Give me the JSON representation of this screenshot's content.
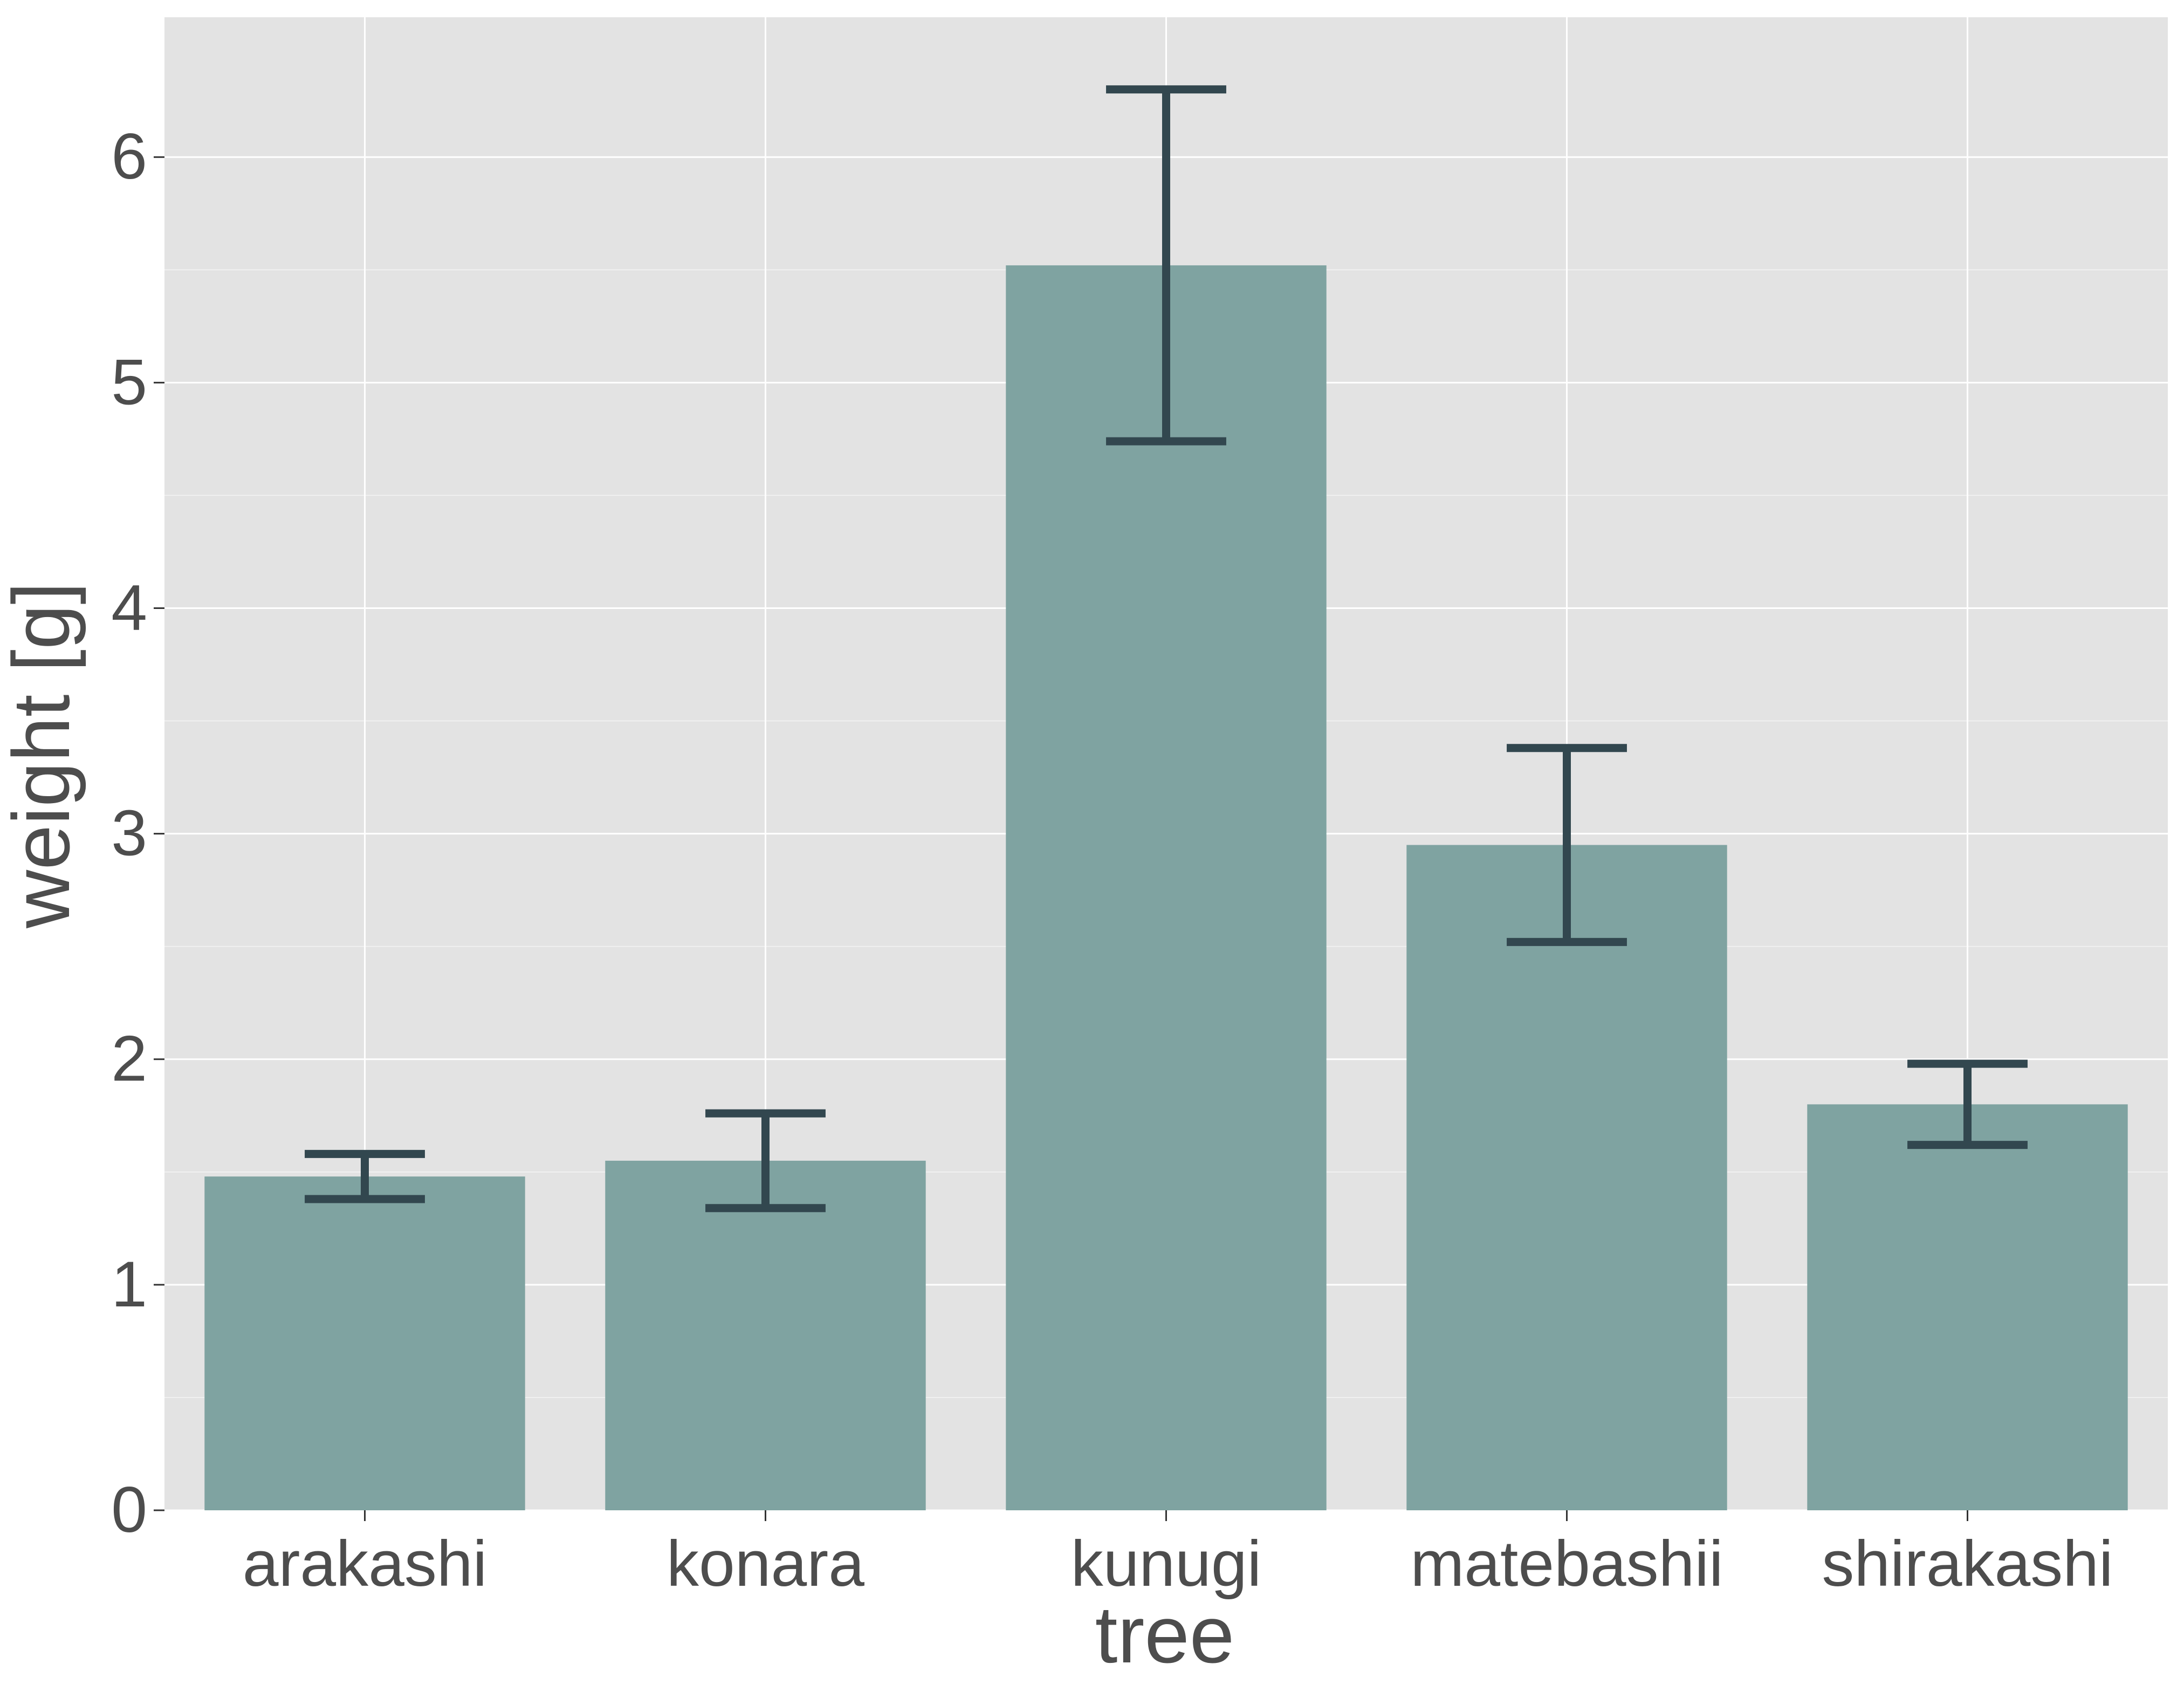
{
  "chart_data": {
    "type": "bar",
    "title": "",
    "xlabel": "tree",
    "ylabel": "weight [g]",
    "categories": [
      "arakashi",
      "konara",
      "kunugi",
      "matebashii",
      "shirakashi"
    ],
    "values": [
      1.48,
      1.55,
      5.52,
      2.95,
      1.8
    ],
    "error_low": [
      1.38,
      1.34,
      4.74,
      2.52,
      1.62
    ],
    "error_high": [
      1.58,
      1.76,
      6.3,
      3.38,
      1.98
    ],
    "ylim": [
      0,
      6.62
    ],
    "yticks": [
      0,
      1,
      2,
      3,
      4,
      5,
      6
    ],
    "ytick_labels": [
      "0",
      "1",
      "2",
      "3",
      "4",
      "5",
      "6"
    ],
    "grid": true,
    "legend": "none",
    "colors": {
      "panel_background": "#e3e3e3",
      "gridline": "#ffffff",
      "bar_fill": "#7fa3a1",
      "error_bar": "#32474f",
      "text": "#4d4d4d",
      "tick": "#333333"
    }
  }
}
